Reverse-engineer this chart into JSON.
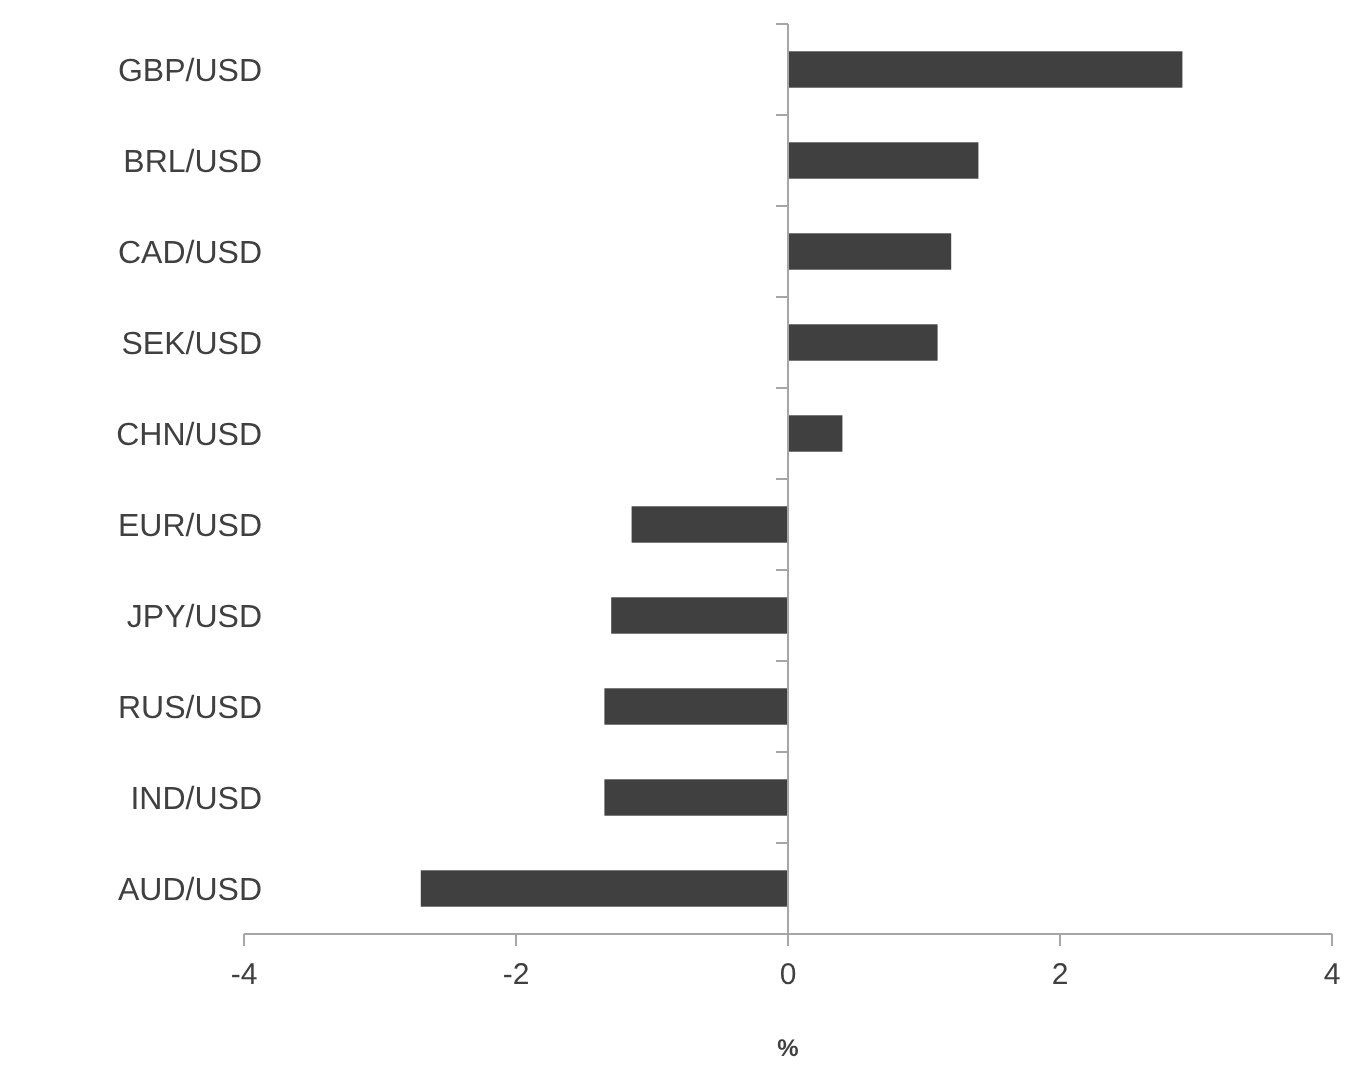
{
  "chart_data": {
    "type": "bar",
    "orientation": "horizontal",
    "categories": [
      "GBP/USD",
      "BRL/USD",
      "CAD/USD",
      "SEK/USD",
      "CHN/USD",
      "EUR/USD",
      "JPY/USD",
      "RUS/USD",
      "IND/USD",
      "AUD/USD"
    ],
    "values": [
      2.9,
      1.4,
      1.2,
      1.1,
      0.4,
      -1.15,
      -1.3,
      -1.35,
      -1.35,
      -2.7
    ],
    "color": "#404040",
    "xlim": [
      -4,
      4
    ],
    "xticks": [
      -4,
      -2,
      0,
      2,
      4
    ],
    "xlabel": "%"
  }
}
